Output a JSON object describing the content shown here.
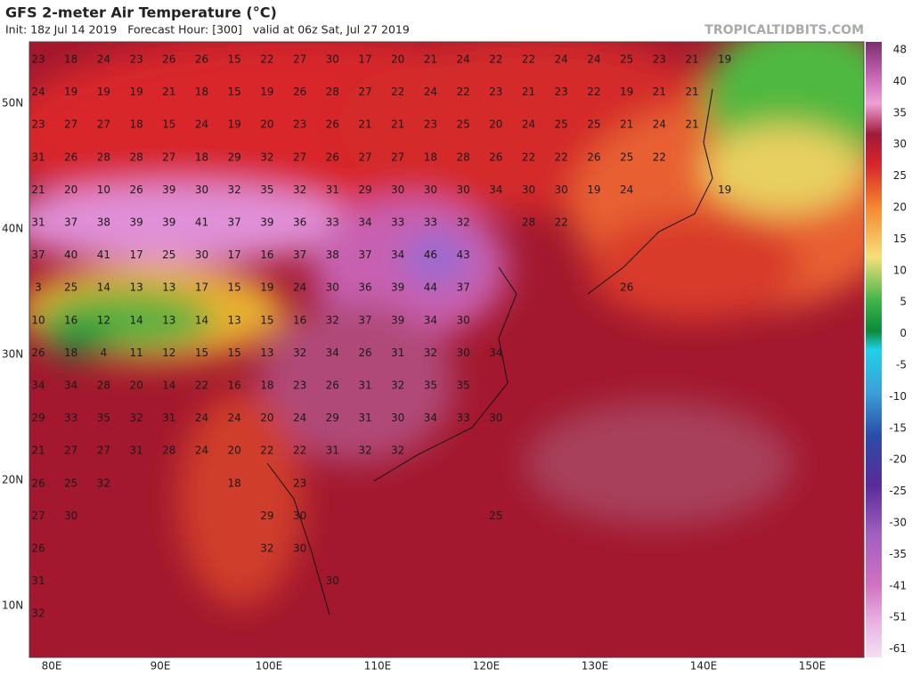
{
  "header": {
    "title": "GFS 2-meter Air Temperature (°C)",
    "subtitle": "Init: 18z Jul 14 2019   Forecast Hour: [300]   valid at 06z Sat, Jul 27 2019",
    "watermark": "TROPICALTIDBITS.COM"
  },
  "map": {
    "lat_labels": [
      "50N",
      "40N",
      "30N",
      "20N",
      "10N"
    ],
    "lon_labels": [
      "80E",
      "90E",
      "100E",
      "110E",
      "120E",
      "130E",
      "140E",
      "150E"
    ],
    "temperature_rows": [
      [
        23,
        18,
        24,
        23,
        26,
        26,
        15,
        22,
        27,
        30,
        17,
        20,
        21,
        24,
        22,
        22,
        24,
        24,
        25,
        23,
        21,
        19
      ],
      [
        24,
        19,
        19,
        19,
        21,
        18,
        15,
        19,
        26,
        28,
        27,
        22,
        24,
        22,
        23,
        21,
        23,
        22,
        19,
        21,
        21
      ],
      [
        23,
        27,
        27,
        18,
        15,
        24,
        19,
        20,
        23,
        26,
        21,
        21,
        23,
        25,
        20,
        24,
        25,
        25,
        21,
        24,
        21
      ],
      [
        31,
        26,
        28,
        28,
        27,
        18,
        29,
        32,
        27,
        26,
        27,
        27,
        18,
        28,
        26,
        22,
        22,
        26,
        25,
        22
      ],
      [
        21,
        20,
        10,
        26,
        39,
        30,
        32,
        35,
        32,
        31,
        29,
        30,
        30,
        30,
        34,
        30,
        30,
        19,
        24,
        null,
        null,
        19
      ],
      [
        31,
        37,
        38,
        39,
        39,
        41,
        37,
        39,
        36,
        33,
        34,
        33,
        33,
        32,
        null,
        28,
        22
      ],
      [
        37,
        40,
        41,
        17,
        25,
        30,
        17,
        16,
        37,
        38,
        37,
        34,
        46,
        43
      ],
      [
        3,
        25,
        14,
        13,
        13,
        17,
        15,
        19,
        24,
        30,
        36,
        39,
        44,
        37,
        null,
        null,
        null,
        null,
        26
      ],
      [
        10,
        16,
        12,
        14,
        13,
        14,
        13,
        15,
        16,
        32,
        37,
        39,
        34,
        30
      ],
      [
        26,
        18,
        4,
        11,
        12,
        15,
        15,
        13,
        32,
        34,
        26,
        31,
        32,
        30,
        34
      ],
      [
        34,
        34,
        28,
        20,
        14,
        22,
        16,
        18,
        23,
        26,
        31,
        32,
        35,
        35
      ],
      [
        29,
        33,
        35,
        32,
        31,
        24,
        24,
        20,
        24,
        29,
        31,
        30,
        34,
        33,
        30
      ],
      [
        21,
        27,
        27,
        31,
        28,
        24,
        20,
        22,
        22,
        31,
        32,
        32
      ],
      [
        26,
        25,
        32,
        null,
        null,
        null,
        18,
        null,
        23
      ],
      [
        27,
        30,
        null,
        null,
        null,
        null,
        null,
        29,
        30,
        null,
        null,
        null,
        null,
        null,
        25
      ],
      [
        26,
        null,
        null,
        null,
        null,
        null,
        null,
        32,
        30
      ],
      [
        31,
        null,
        null,
        null,
        null,
        null,
        null,
        null,
        null,
        30
      ],
      [
        32
      ]
    ]
  },
  "colorbar": {
    "labels": [
      48,
      40,
      35,
      30,
      25,
      20,
      15,
      10,
      5,
      0,
      -5,
      -10,
      -15,
      -20,
      -25,
      -30,
      -35,
      -41,
      -51,
      -61
    ]
  }
}
